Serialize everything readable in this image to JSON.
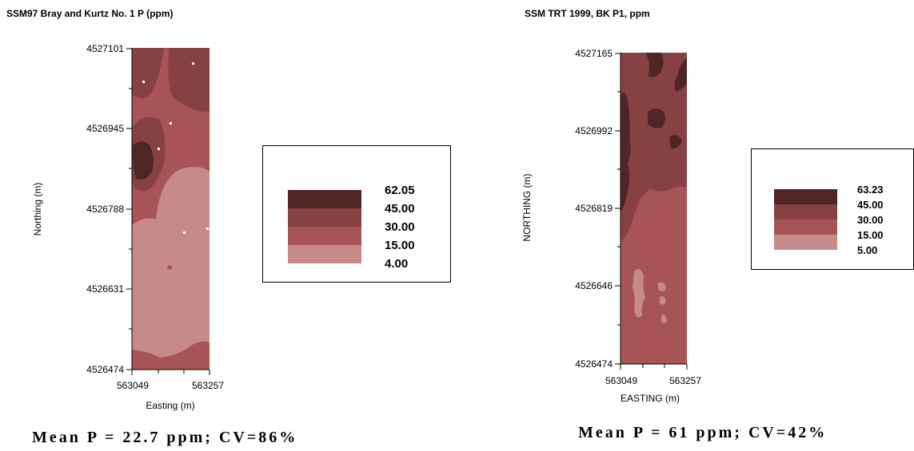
{
  "colors": {
    "class_1": "#c78a8b",
    "class_2": "#a75456",
    "class_3": "#874143",
    "class_4": "#4f2526",
    "background": "#ffffff",
    "sample_point": "#ffffff"
  },
  "maps": [
    {
      "title": "SSM97 Bray and Kurtz No. 1 P (ppm)",
      "xlabel": "Easting (m)",
      "ylabel": "Northing (m)",
      "x_ticks": [
        "563049",
        "563257"
      ],
      "y_ticks": [
        "4527101",
        "4526945",
        "4526788",
        "4526631",
        "4526474"
      ],
      "legend": {
        "labels": [
          "62.05",
          "45.00",
          "30.00",
          "15.00",
          "4.00"
        ]
      },
      "summary": "Mean P = 22.7 ppm; CV=86%"
    },
    {
      "title": "SSM TRT 1999, BK P1, ppm",
      "xlabel": "EASTING (m)",
      "ylabel": "NORTHING (m)",
      "x_ticks": [
        "563049",
        "563257"
      ],
      "y_ticks": [
        "4527165",
        "4526992",
        "4526819",
        "4526646",
        "4526474"
      ],
      "legend": {
        "labels": [
          "63.23",
          "45.00",
          "30.00",
          "15.00",
          "5.00"
        ]
      },
      "summary": "Mean P = 61 ppm; CV=42%"
    }
  ]
}
